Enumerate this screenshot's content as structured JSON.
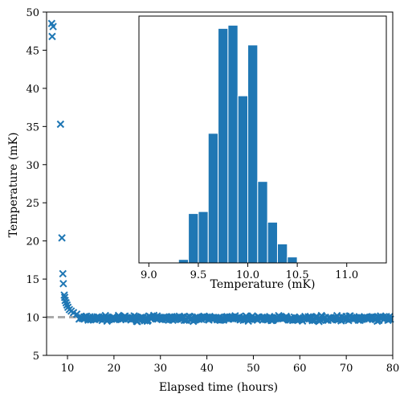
{
  "chart_data": [
    {
      "type": "scatter",
      "xlabel": "Elapsed time (hours)",
      "ylabel": "Temperature (mK)",
      "xlim": [
        5.5,
        80
      ],
      "ylim": [
        5,
        50
      ],
      "xticks": [
        10,
        20,
        30,
        40,
        50,
        60,
        70,
        80
      ],
      "yticks": [
        5,
        10,
        15,
        20,
        25,
        30,
        35,
        40,
        45,
        50
      ],
      "marker": "x",
      "color": "#1f77b4",
      "reference_line": {
        "y": 10,
        "style": "dashed",
        "color": "#aaaaaa"
      },
      "initial_points": [
        {
          "x": 6.6,
          "y": 48.5
        },
        {
          "x": 6.9,
          "y": 48.1
        },
        {
          "x": 6.7,
          "y": 46.8
        },
        {
          "x": 8.5,
          "y": 35.3
        },
        {
          "x": 8.8,
          "y": 20.4
        },
        {
          "x": 9.0,
          "y": 15.7
        },
        {
          "x": 9.1,
          "y": 14.4
        },
        {
          "x": 9.3,
          "y": 12.9
        },
        {
          "x": 9.4,
          "y": 12.6
        },
        {
          "x": 9.5,
          "y": 12.2
        },
        {
          "x": 9.7,
          "y": 11.9
        },
        {
          "x": 9.9,
          "y": 11.6
        },
        {
          "x": 10.1,
          "y": 11.3
        },
        {
          "x": 10.4,
          "y": 11.0
        },
        {
          "x": 10.8,
          "y": 10.8
        },
        {
          "x": 11.3,
          "y": 10.6
        },
        {
          "x": 12.0,
          "y": 10.4
        }
      ],
      "steady_state": {
        "x_start": 12.5,
        "x_end": 79.5,
        "mean": 9.85,
        "spread": 0.35,
        "count": 380
      }
    },
    {
      "type": "bar",
      "subtype": "histogram",
      "xlabel": "Temperature (mK)",
      "xlim": [
        8.9,
        11.4
      ],
      "xticks": [
        "9.0",
        "9.5",
        "10.0",
        "10.5",
        "11.0"
      ],
      "ylim": [
        0,
        1.0
      ],
      "color": "#1f77b4",
      "bins": [
        {
          "x0": 9.3,
          "x1": 9.4,
          "value": 0.014
        },
        {
          "x0": 9.4,
          "x1": 9.5,
          "value": 0.2
        },
        {
          "x0": 9.5,
          "x1": 9.6,
          "value": 0.208
        },
        {
          "x0": 9.6,
          "x1": 9.7,
          "value": 0.525
        },
        {
          "x0": 9.7,
          "x1": 9.8,
          "value": 0.95
        },
        {
          "x0": 9.8,
          "x1": 9.9,
          "value": 0.963
        },
        {
          "x0": 9.9,
          "x1": 10.0,
          "value": 0.677
        },
        {
          "x0": 10.0,
          "x1": 10.1,
          "value": 0.883
        },
        {
          "x0": 10.1,
          "x1": 10.2,
          "value": 0.33
        },
        {
          "x0": 10.2,
          "x1": 10.3,
          "value": 0.165
        },
        {
          "x0": 10.3,
          "x1": 10.4,
          "value": 0.077
        },
        {
          "x0": 10.4,
          "x1": 10.5,
          "value": 0.024
        }
      ]
    }
  ]
}
